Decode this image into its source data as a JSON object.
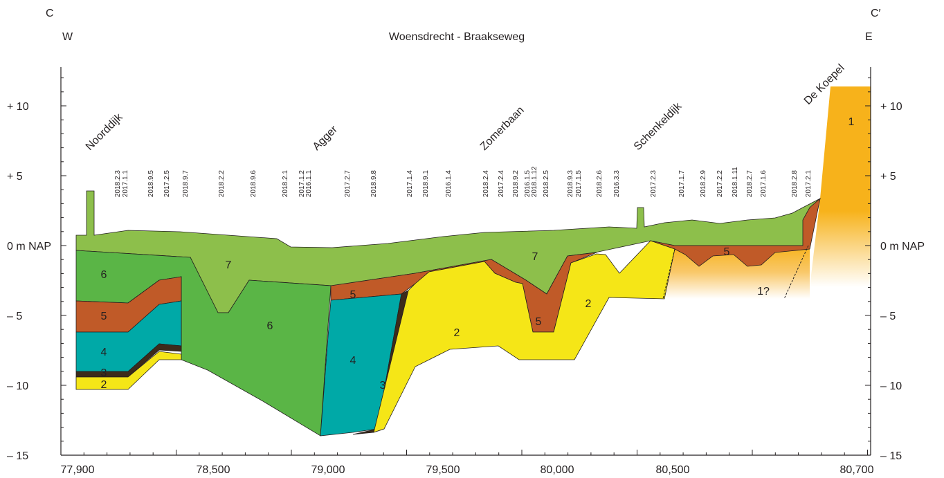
{
  "header": {
    "left_section": "C",
    "left_direction": "W",
    "title": "Woensdrecht - Braakseweg",
    "right_section": "C′",
    "right_direction": "E"
  },
  "y_axis": {
    "labels": [
      "+ 10",
      "+ 5",
      "0 m NAP",
      "– 5",
      "– 10",
      "– 15"
    ]
  },
  "x_axis": {
    "labels": [
      "77,900",
      "78,500",
      "79,000",
      "79,500",
      "80,000",
      "80,500",
      "80,700"
    ]
  },
  "places": [
    "Noorddijk",
    "Agger",
    "Zomerbaan",
    "Schenkeldijk",
    "De Koepel"
  ],
  "boreholes": [
    "2018.2.3",
    "2017.1.1",
    "2018.9.5",
    "2017.2.5",
    "2018.9.7",
    "2018.2.2",
    "2018.9.6",
    "2018.2.1",
    "2017.1.2",
    "2016.1.1",
    "2017.2.7",
    "2018.9.8",
    "2017.1.4",
    "2018.9.1",
    "2016.1.4",
    "2018.2.4",
    "2017.2.4",
    "2018.9.2",
    "2016.1.5",
    "2018.1.12",
    "2018.2.5",
    "2018.9.3",
    "2017.1.5",
    "2018.2.6",
    "2016.3.3",
    "2017.2.3",
    "2017.1.7",
    "2018.2.9",
    "2017.2.2",
    "2018.1.11",
    "2018.2.7",
    "2017.1.6",
    "2018.2.8",
    "2017.2.1"
  ],
  "units": [
    "6",
    "5",
    "4",
    "3",
    "2",
    "7",
    "6",
    "5",
    "4",
    "3",
    "2",
    "7",
    "5",
    "2",
    "5",
    "1?",
    "1"
  ]
}
